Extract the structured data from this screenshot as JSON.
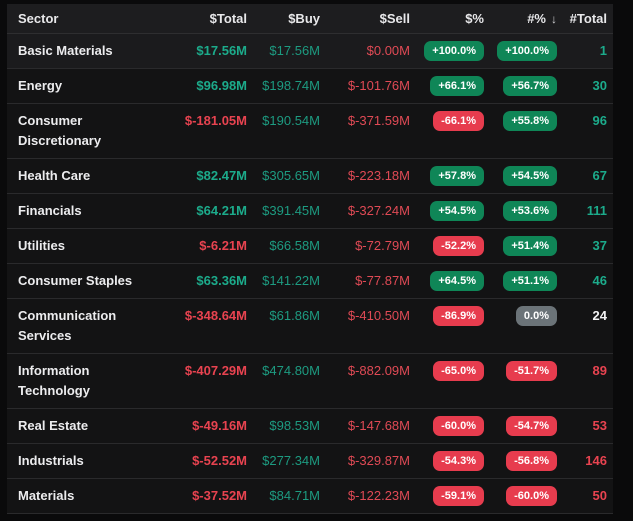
{
  "table": {
    "columns": [
      {
        "label": "Sector"
      },
      {
        "label": "$Total"
      },
      {
        "label": "$Buy"
      },
      {
        "label": "$Sell"
      },
      {
        "label": "$%"
      },
      {
        "label": "#%",
        "sorted": "desc"
      },
      {
        "label": "#Total"
      }
    ],
    "sort_icon": "↓",
    "rows": [
      {
        "sector": "Basic Materials",
        "total": "$17.56M",
        "total_tone": "pos",
        "buy": "$17.56M",
        "sell": "$0.00M",
        "pct_dollar": "+100.0%",
        "pct_dollar_tone": "pos",
        "pct_count": "+100.0%",
        "pct_count_tone": "pos",
        "count": "1",
        "count_tone": "pos",
        "highlighted": true
      },
      {
        "sector": "Energy",
        "total": "$96.98M",
        "total_tone": "pos",
        "buy": "$198.74M",
        "sell": "$-101.76M",
        "pct_dollar": "+66.1%",
        "pct_dollar_tone": "pos",
        "pct_count": "+56.7%",
        "pct_count_tone": "pos",
        "count": "30",
        "count_tone": "pos"
      },
      {
        "sector": "Consumer Discretionary",
        "total": "$-181.05M",
        "total_tone": "neg",
        "buy": "$190.54M",
        "sell": "$-371.59M",
        "pct_dollar": "-66.1%",
        "pct_dollar_tone": "neg",
        "pct_count": "+55.8%",
        "pct_count_tone": "pos",
        "count": "96",
        "count_tone": "pos"
      },
      {
        "sector": "Health Care",
        "total": "$82.47M",
        "total_tone": "pos",
        "buy": "$305.65M",
        "sell": "$-223.18M",
        "pct_dollar": "+57.8%",
        "pct_dollar_tone": "pos",
        "pct_count": "+54.5%",
        "pct_count_tone": "pos",
        "count": "67",
        "count_tone": "pos"
      },
      {
        "sector": "Financials",
        "total": "$64.21M",
        "total_tone": "pos",
        "buy": "$391.45M",
        "sell": "$-327.24M",
        "pct_dollar": "+54.5%",
        "pct_dollar_tone": "pos",
        "pct_count": "+53.6%",
        "pct_count_tone": "pos",
        "count": "111",
        "count_tone": "pos"
      },
      {
        "sector": "Utilities",
        "total": "$-6.21M",
        "total_tone": "neg",
        "buy": "$66.58M",
        "sell": "$-72.79M",
        "pct_dollar": "-52.2%",
        "pct_dollar_tone": "neg",
        "pct_count": "+51.4%",
        "pct_count_tone": "pos",
        "count": "37",
        "count_tone": "pos"
      },
      {
        "sector": "Consumer Staples",
        "total": "$63.36M",
        "total_tone": "pos",
        "buy": "$141.22M",
        "sell": "$-77.87M",
        "pct_dollar": "+64.5%",
        "pct_dollar_tone": "pos",
        "pct_count": "+51.1%",
        "pct_count_tone": "pos",
        "count": "46",
        "count_tone": "pos"
      },
      {
        "sector": "Communication Services",
        "total": "$-348.64M",
        "total_tone": "neg",
        "buy": "$61.86M",
        "sell": "$-410.50M",
        "pct_dollar": "-86.9%",
        "pct_dollar_tone": "neg",
        "pct_count": "0.0%",
        "pct_count_tone": "neu",
        "count": "24",
        "count_tone": "neu"
      },
      {
        "sector": "Information Technology",
        "total": "$-407.29M",
        "total_tone": "neg",
        "buy": "$474.80M",
        "sell": "$-882.09M",
        "pct_dollar": "-65.0%",
        "pct_dollar_tone": "neg",
        "pct_count": "-51.7%",
        "pct_count_tone": "neg",
        "count": "89",
        "count_tone": "neg"
      },
      {
        "sector": "Real Estate",
        "total": "$-49.16M",
        "total_tone": "neg",
        "buy": "$98.53M",
        "sell": "$-147.68M",
        "pct_dollar": "-60.0%",
        "pct_dollar_tone": "neg",
        "pct_count": "-54.7%",
        "pct_count_tone": "neg",
        "count": "53",
        "count_tone": "neg"
      },
      {
        "sector": "Industrials",
        "total": "$-52.52M",
        "total_tone": "neg",
        "buy": "$277.34M",
        "sell": "$-329.87M",
        "pct_dollar": "-54.3%",
        "pct_dollar_tone": "neg",
        "pct_count": "-56.8%",
        "pct_count_tone": "neg",
        "count": "146",
        "count_tone": "neg"
      },
      {
        "sector": "Materials",
        "total": "$-37.52M",
        "total_tone": "neg",
        "buy": "$84.71M",
        "sell": "$-122.23M",
        "pct_dollar": "-59.1%",
        "pct_dollar_tone": "neg",
        "pct_count": "-60.0%",
        "pct_count_tone": "neg",
        "count": "50",
        "count_tone": "neg"
      }
    ]
  },
  "colors": {
    "page_bg": "#0a0a0b",
    "header_bg": "#1d1d1f",
    "row_bg": "#131314",
    "row_highlight_bg": "#1b1b1d",
    "separator": "#2a2a2c",
    "positive_text": "#1cab8b",
    "negative_text": "#e84350",
    "neutral_text": "#f2f2f3",
    "badge_positive_bg": "#0f8657",
    "badge_negative_bg": "#e73c4e",
    "badge_neutral_bg": "#6b7378"
  }
}
